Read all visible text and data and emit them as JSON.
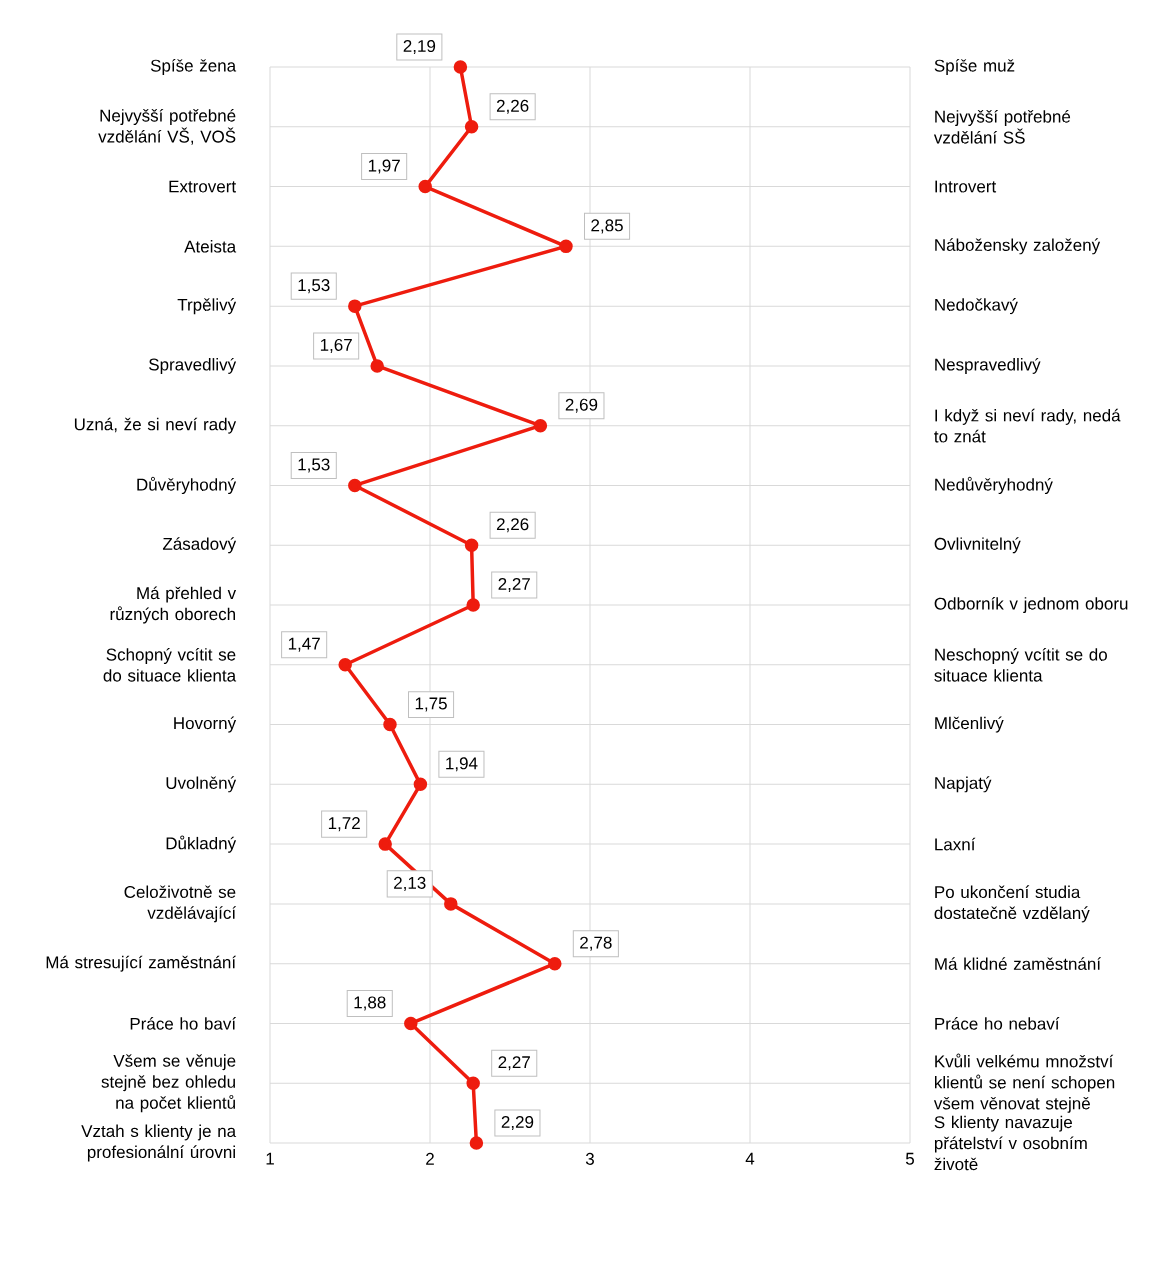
{
  "chart_data": {
    "type": "line",
    "orientation": "horizontal",
    "categories": [
      "Spíše žena",
      "Nejvyšší potřebné vzdělání VŠ, VOŠ",
      "Extrovert",
      "Ateista",
      "Trpělivý",
      "Spravedlivý",
      "Uzná, že si neví rady",
      "Důvěryhodný",
      "Zásadový",
      "Má přehled v různých oborech",
      "Schopný vcítit se do situace klienta",
      "Hovorný",
      "Uvolněný",
      "Důkladný",
      "Celoživotně se vzdělávající",
      "Má stresující zaměstnání",
      "Práce ho baví",
      "Všem se věnuje stejně bez ohledu na počet klientů",
      "Vztah s klienty je na profesionální úrovni"
    ],
    "y2_categories": [
      "Spíše muž",
      "Nejvyšší potřebné vzdělání SŠ",
      "Introvert",
      "Nábožensky založený",
      "Nedočkavý",
      "Nespravedlivý",
      "I když si neví rady, nedá to znát",
      "Nedůvěryhodný",
      "Ovlivnitelný",
      "Odborník v jednom oboru",
      "Neschopný vcítit se do situace klienta",
      "Mlčenlivý",
      "Napjatý",
      "Laxní",
      "Po ukončení studia dostatečně vzdělaný",
      "Má klidné zaměstnání",
      "Práce ho nebaví",
      "Kvůli velkému množství klientů se není schopen všem věnovat stejně",
      "S klienty navazuje přátelství v osobním životě"
    ],
    "values": [
      2.19,
      2.26,
      1.97,
      2.85,
      1.53,
      1.67,
      2.69,
      1.53,
      2.26,
      2.27,
      1.47,
      1.75,
      1.94,
      1.72,
      2.13,
      2.78,
      1.88,
      2.27,
      2.29
    ],
    "value_labels": [
      "2,19",
      "2,26",
      "1,97",
      "2,85",
      "1,53",
      "1,67",
      "2,69",
      "1,53",
      "2,26",
      "2,27",
      "1,47",
      "1,75",
      "1,94",
      "1,72",
      "2,13",
      "2,78",
      "1,88",
      "2,27",
      "2,29"
    ],
    "color": "#ee1c0e",
    "xlim": [
      1,
      5
    ],
    "xticks": [
      1,
      2,
      3,
      4,
      5
    ],
    "grid": true,
    "marker": "circle",
    "line_style": "solid"
  }
}
